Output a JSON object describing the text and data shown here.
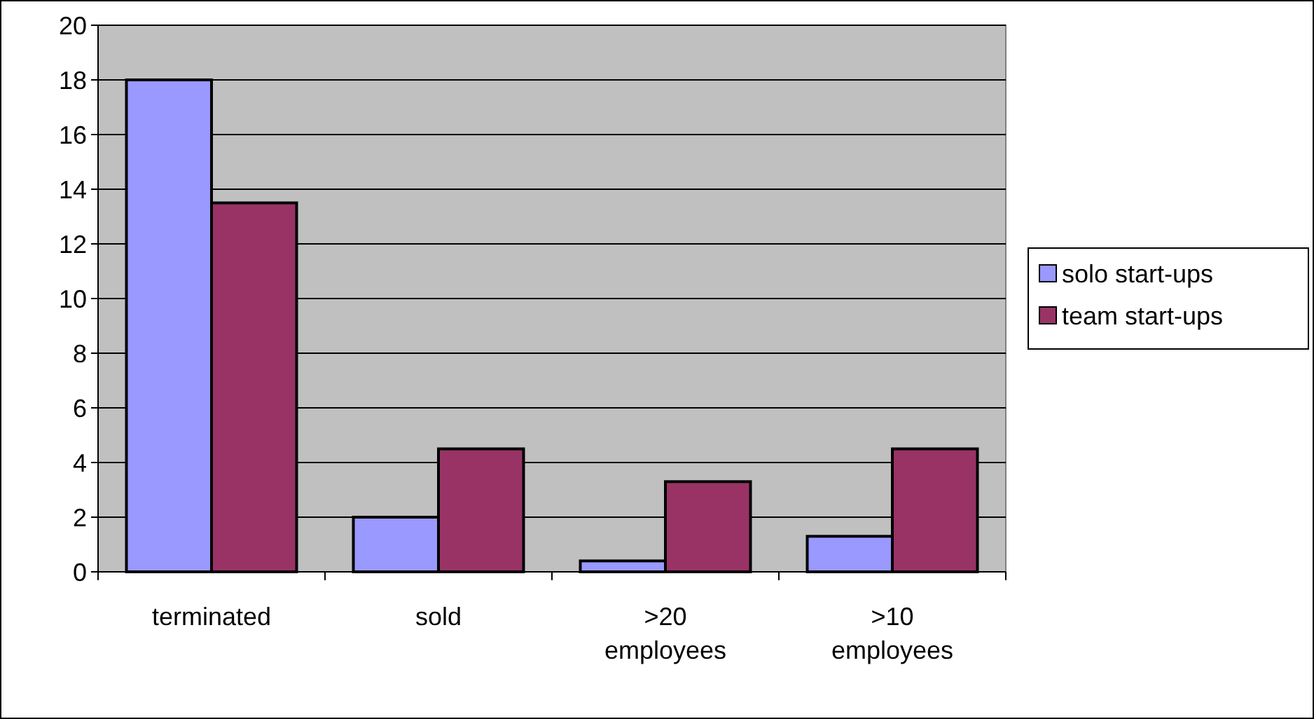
{
  "chart_data": {
    "type": "bar",
    "categories": [
      "terminated",
      "sold",
      ">20 employees",
      ">10 employees"
    ],
    "series": [
      {
        "name": "solo start-ups",
        "color": "#9999ff",
        "values": [
          18,
          2,
          0.4,
          1.3
        ]
      },
      {
        "name": "team start-ups",
        "color": "#993366",
        "values": [
          13.5,
          4.5,
          3.3,
          4.5
        ]
      }
    ],
    "ylim": [
      0,
      20
    ],
    "yticks": [
      0,
      2,
      4,
      6,
      8,
      10,
      12,
      14,
      16,
      18,
      20
    ],
    "grid": "y",
    "legend": "right"
  }
}
